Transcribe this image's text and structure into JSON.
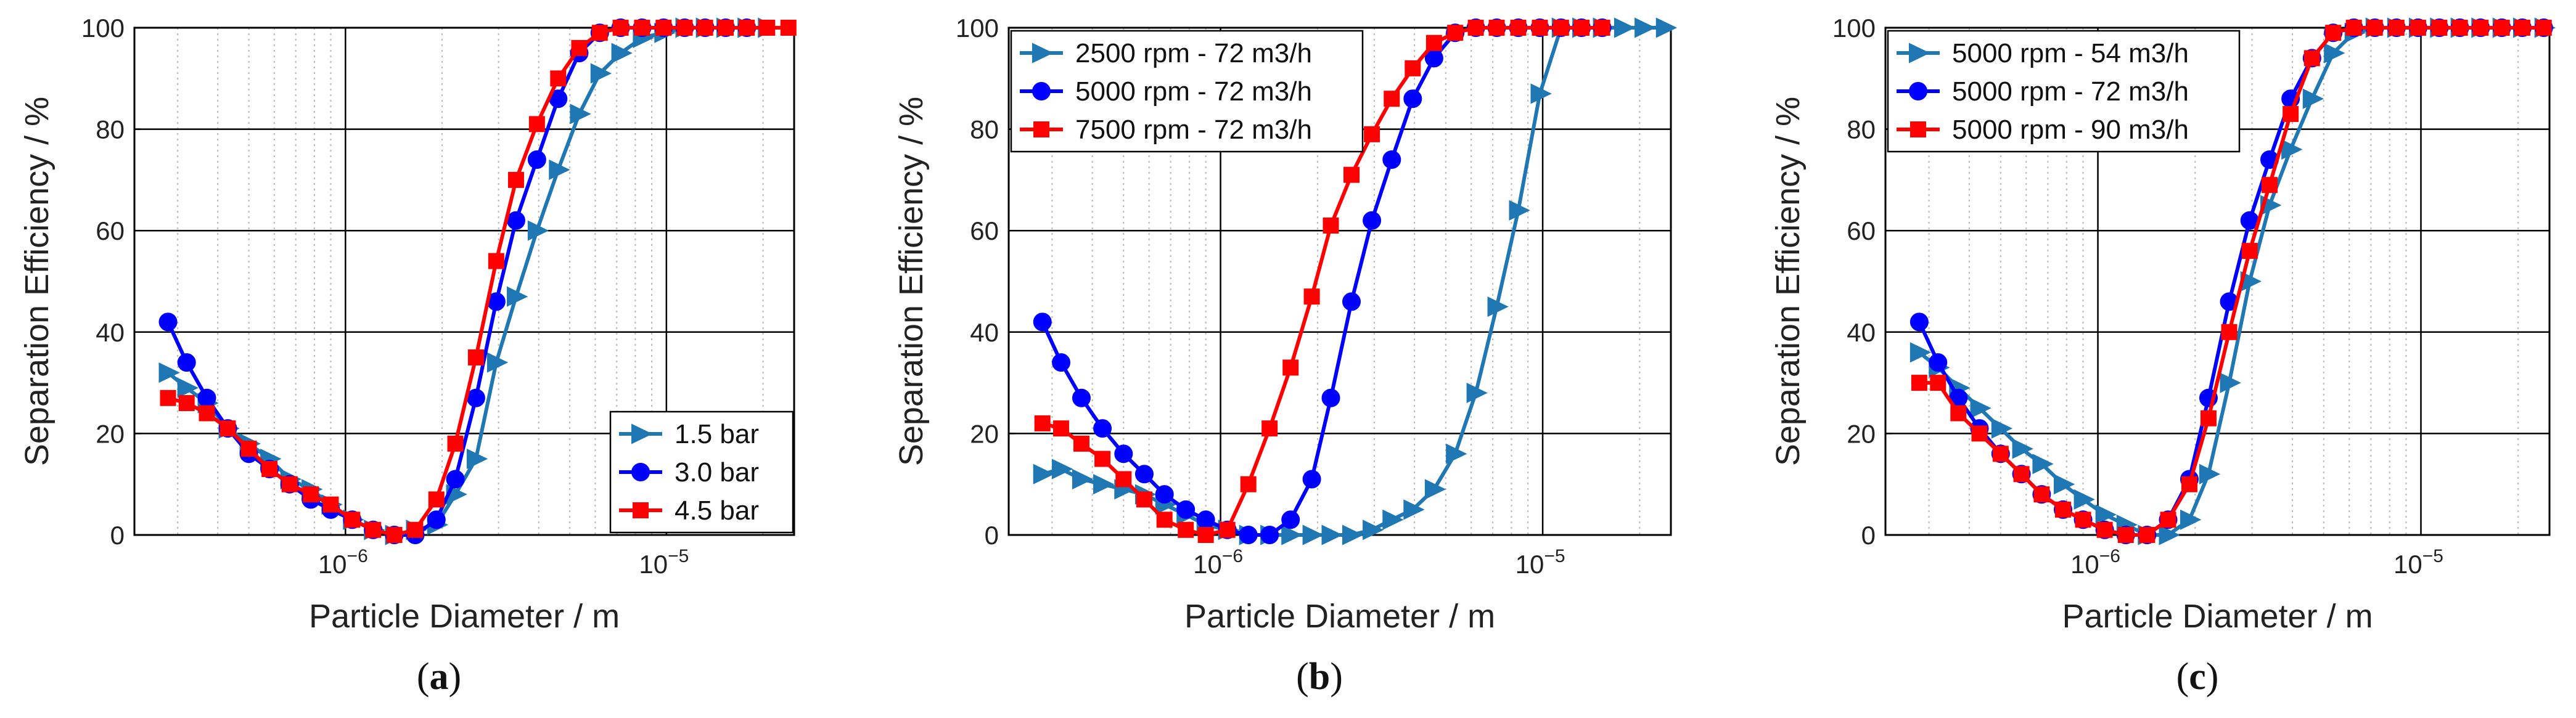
{
  "chart_data": [
    {
      "type": "line",
      "panel_label": "a",
      "xlabel": "Particle Diameter / m",
      "ylabel": "Separation Efficiency / %",
      "xscale": "log",
      "xlim": [
        2.2e-07,
        2.5e-05
      ],
      "ylim": [
        0,
        100
      ],
      "yticks": [
        "0",
        "20",
        "40",
        "60",
        "80",
        "100"
      ],
      "xticks": [
        {
          "base": "10",
          "exp": "−6"
        },
        {
          "base": "10",
          "exp": "−5"
        }
      ],
      "legend_position": "lower-right",
      "x": [
        2.8e-07,
        3.2e-07,
        3.7e-07,
        4.3e-07,
        5e-07,
        5.8e-07,
        6.7e-07,
        7.8e-07,
        9e-07,
        1.05e-06,
        1.22e-06,
        1.42e-06,
        1.65e-06,
        1.92e-06,
        2.2e-06,
        2.55e-06,
        2.95e-06,
        3.4e-06,
        3.95e-06,
        4.6e-06,
        5.35e-06,
        6.2e-06,
        7.2e-06,
        8.4e-06,
        9.8e-06,
        1.14e-05,
        1.32e-05,
        1.53e-05,
        1.78e-05,
        2.06e-05,
        2.4e-05
      ],
      "series": [
        {
          "name": "1.5 bar",
          "color": "#1f77b4",
          "marker": "triangle-right",
          "values": [
            32,
            29,
            26,
            21,
            18,
            15,
            11,
            9,
            6,
            3,
            1,
            0,
            1,
            2,
            8,
            15,
            34,
            47,
            60,
            72,
            83,
            91,
            95,
            98,
            99,
            100,
            100,
            100,
            100,
            100,
            null
          ]
        },
        {
          "name": "3.0 bar",
          "color": "#0000ff",
          "marker": "circle",
          "values": [
            42,
            34,
            27,
            21,
            16,
            13,
            10,
            7,
            5,
            3,
            1,
            0,
            0,
            3,
            11,
            27,
            46,
            62,
            74,
            86,
            95,
            99,
            100,
            100,
            100,
            100,
            100,
            100,
            100,
            null,
            null
          ]
        },
        {
          "name": "4.5 bar",
          "color": "#ff0000",
          "marker": "square",
          "values": [
            27,
            26,
            24,
            21,
            17,
            13,
            10,
            8,
            6,
            3,
            1,
            0,
            1,
            7,
            18,
            35,
            54,
            70,
            81,
            90,
            96,
            99,
            100,
            100,
            100,
            100,
            100,
            100,
            100,
            100,
            100
          ]
        }
      ]
    },
    {
      "type": "line",
      "panel_label": "b",
      "xlabel": "Particle Diameter / m",
      "ylabel": "Separation Efficiency / %",
      "xscale": "log",
      "xlim": [
        2.2e-07,
        2.5e-05
      ],
      "ylim": [
        0,
        100
      ],
      "yticks": [
        "0",
        "20",
        "40",
        "60",
        "80",
        "100"
      ],
      "xticks": [
        {
          "base": "10",
          "exp": "−6"
        },
        {
          "base": "10",
          "exp": "−5"
        }
      ],
      "legend_position": "top-left",
      "x": [
        2.8e-07,
        3.2e-07,
        3.7e-07,
        4.3e-07,
        5e-07,
        5.8e-07,
        6.7e-07,
        7.8e-07,
        9e-07,
        1.05e-06,
        1.22e-06,
        1.42e-06,
        1.65e-06,
        1.92e-06,
        2.2e-06,
        2.55e-06,
        2.95e-06,
        3.4e-06,
        3.95e-06,
        4.6e-06,
        5.35e-06,
        6.2e-06,
        7.2e-06,
        8.4e-06,
        9.8e-06,
        1.14e-05,
        1.32e-05,
        1.53e-05,
        1.78e-05,
        2.06e-05,
        2.4e-05
      ],
      "series": [
        {
          "name": "2500 rpm - 72 m3/h",
          "color": "#1f77b4",
          "marker": "triangle-right",
          "values": [
            12,
            13,
            11,
            10,
            9,
            8,
            6,
            4,
            2,
            1,
            0,
            0,
            0,
            0,
            0,
            0,
            1,
            3,
            5,
            9,
            16,
            28,
            45,
            64,
            87,
            100,
            100,
            100,
            100,
            100,
            100
          ]
        },
        {
          "name": "5000 rpm - 72 m3/h",
          "color": "#0000ff",
          "marker": "circle",
          "values": [
            42,
            34,
            27,
            21,
            16,
            12,
            8,
            5,
            3,
            1,
            0,
            0,
            3,
            11,
            27,
            46,
            62,
            74,
            86,
            94,
            99,
            100,
            100,
            100,
            100,
            100,
            100,
            100,
            null,
            null,
            null
          ]
        },
        {
          "name": "7500 rpm - 72 m3/h",
          "color": "#ff0000",
          "marker": "square",
          "values": [
            22,
            21,
            18,
            15,
            11,
            7,
            3,
            1,
            0,
            1,
            10,
            21,
            33,
            47,
            61,
            71,
            79,
            86,
            92,
            97,
            99,
            100,
            100,
            100,
            100,
            100,
            100,
            100,
            null,
            null,
            null
          ]
        }
      ]
    },
    {
      "type": "line",
      "panel_label": "c",
      "xlabel": "Particle Diameter / m",
      "ylabel": "Separation Efficiency / %",
      "xscale": "log",
      "xlim": [
        2.2e-07,
        2.5e-05
      ],
      "ylim": [
        0,
        100
      ],
      "yticks": [
        "0",
        "20",
        "40",
        "60",
        "80",
        "100"
      ],
      "xticks": [
        {
          "base": "10",
          "exp": "−6"
        },
        {
          "base": "10",
          "exp": "−5"
        }
      ],
      "legend_position": "top-left",
      "x": [
        2.8e-07,
        3.2e-07,
        3.7e-07,
        4.3e-07,
        5e-07,
        5.8e-07,
        6.7e-07,
        7.8e-07,
        9e-07,
        1.05e-06,
        1.22e-06,
        1.42e-06,
        1.65e-06,
        1.92e-06,
        2.2e-06,
        2.55e-06,
        2.95e-06,
        3.4e-06,
        3.95e-06,
        4.6e-06,
        5.35e-06,
        6.2e-06,
        7.2e-06,
        8.4e-06,
        9.8e-06,
        1.14e-05,
        1.32e-05,
        1.53e-05,
        1.78e-05,
        2.06e-05,
        2.4e-05
      ],
      "series": [
        {
          "name": "5000 rpm - 54 m3/h",
          "color": "#1f77b4",
          "marker": "triangle-right",
          "values": [
            36,
            33,
            29,
            25,
            21,
            17,
            14,
            10,
            7,
            4,
            2,
            0,
            0,
            3,
            12,
            30,
            50,
            65,
            76,
            86,
            95,
            99,
            100,
            100,
            100,
            100,
            100,
            100,
            100,
            100,
            100
          ]
        },
        {
          "name": "5000 rpm - 72 m3/h",
          "color": "#0000ff",
          "marker": "circle",
          "values": [
            42,
            34,
            27,
            21,
            16,
            12,
            8,
            5,
            3,
            1,
            0,
            0,
            3,
            11,
            27,
            46,
            62,
            74,
            86,
            94,
            99,
            100,
            100,
            100,
            100,
            100,
            100,
            100,
            100,
            100,
            100
          ]
        },
        {
          "name": "5000 rpm - 90 m3/h",
          "color": "#ff0000",
          "marker": "square",
          "values": [
            30,
            30,
            24,
            20,
            16,
            12,
            8,
            5,
            3,
            1,
            0,
            0,
            3,
            10,
            23,
            40,
            56,
            69,
            83,
            94,
            99,
            100,
            100,
            100,
            100,
            100,
            100,
            100,
            100,
            100,
            100
          ]
        }
      ]
    }
  ]
}
